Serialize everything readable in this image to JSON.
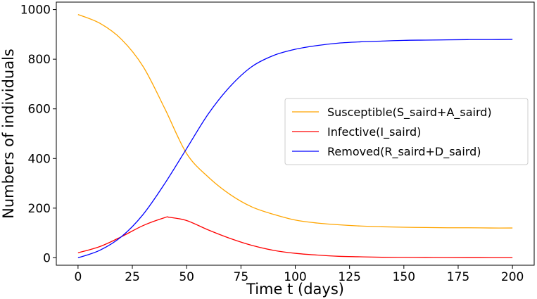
{
  "chart_data": {
    "type": "line",
    "title": "",
    "xlabel": "Time t (days)",
    "ylabel": "Numbers of individuals",
    "xlim": [
      -10,
      210
    ],
    "ylim": [
      -30,
      1030
    ],
    "xticks": [
      0,
      25,
      50,
      75,
      100,
      125,
      150,
      175,
      200
    ],
    "yticks": [
      0,
      200,
      400,
      600,
      800,
      1000
    ],
    "grid": false,
    "legend_position": "center-right",
    "series": [
      {
        "name": "Susceptible(S_saird+A_saird)",
        "color": "#FFA500",
        "x": [
          0,
          10,
          20,
          30,
          40,
          50,
          60,
          70,
          80,
          90,
          100,
          110,
          120,
          130,
          140,
          150,
          160,
          170,
          180,
          190,
          200
        ],
        "y": [
          980,
          945,
          880,
          770,
          600,
          420,
          325,
          255,
          205,
          175,
          152,
          140,
          133,
          128,
          125,
          123,
          122,
          121,
          121,
          120,
          120
        ]
      },
      {
        "name": "Infective(I_saird)",
        "color": "#FF0000",
        "x": [
          0,
          10,
          20,
          30,
          40,
          42,
          50,
          60,
          70,
          80,
          90,
          100,
          110,
          120,
          130,
          140,
          150,
          160,
          170,
          180,
          190,
          200
        ],
        "y": [
          20,
          45,
          85,
          130,
          162,
          163,
          150,
          112,
          78,
          50,
          30,
          18,
          11,
          6,
          4,
          2,
          1.5,
          1,
          0.5,
          0.3,
          0.2,
          0.1
        ]
      },
      {
        "name": "Removed(R_saird+D_saird)",
        "color": "#0000FF",
        "x": [
          0,
          10,
          20,
          30,
          40,
          50,
          60,
          70,
          80,
          90,
          100,
          110,
          120,
          130,
          140,
          150,
          160,
          170,
          180,
          190,
          200
        ],
        "y": [
          0,
          30,
          85,
          175,
          300,
          440,
          580,
          690,
          770,
          815,
          840,
          855,
          865,
          870,
          873,
          876,
          877,
          878,
          879,
          879,
          880
        ]
      }
    ]
  }
}
